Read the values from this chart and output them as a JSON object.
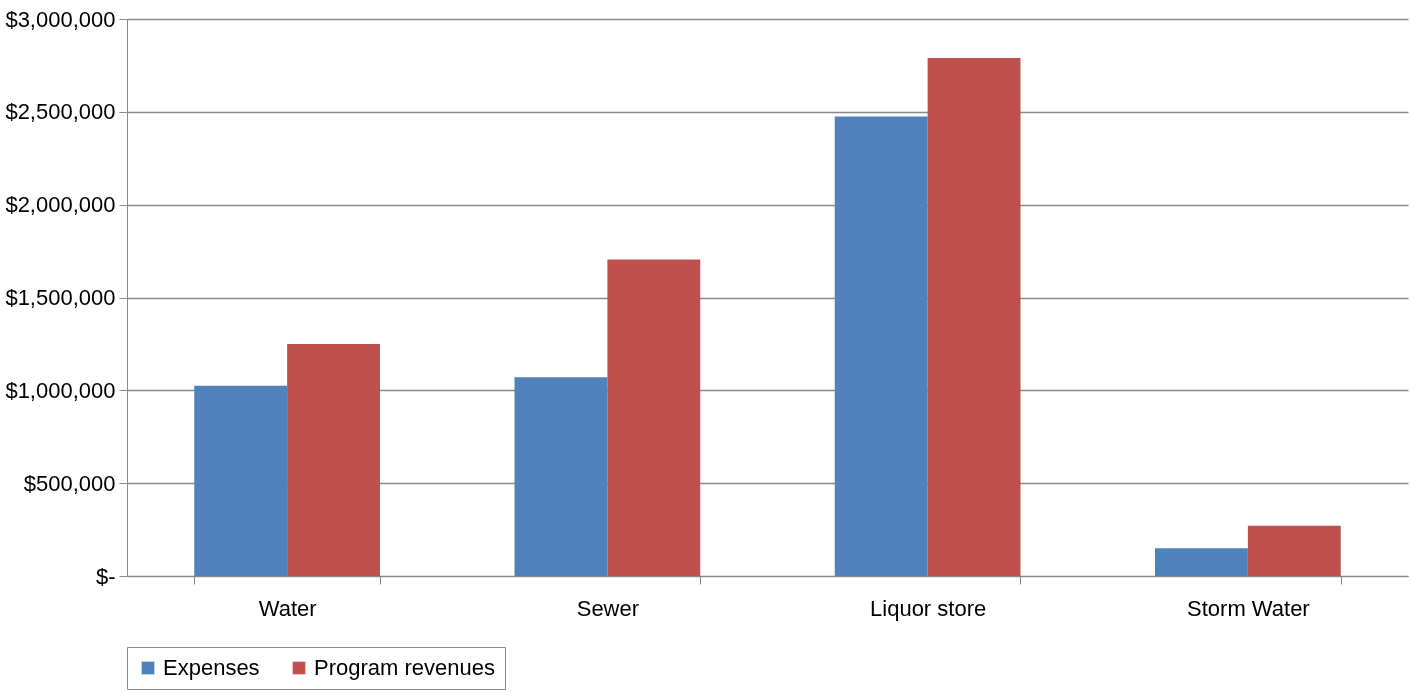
{
  "chart_data": {
    "type": "bar",
    "categories": [
      "Water",
      "Sewer",
      "Liquor store",
      "Storm Water"
    ],
    "series": [
      {
        "name": "Expenses",
        "color": "#4f81bd",
        "values": [
          1025000,
          1070000,
          2475000,
          150000
        ]
      },
      {
        "name": "Program revenues",
        "color": "#c0504d",
        "values": [
          1250000,
          1705000,
          2790000,
          270000
        ]
      }
    ],
    "ylim": [
      0,
      3000000
    ],
    "yticks": [
      {
        "value": 0,
        "label": "$-"
      },
      {
        "value": 500000,
        "label": "$500,000"
      },
      {
        "value": 1000000,
        "label": "$1,000,000"
      },
      {
        "value": 1500000,
        "label": "$1,500,000"
      },
      {
        "value": 2000000,
        "label": "$2,000,000"
      },
      {
        "value": 2500000,
        "label": "$2,500,000"
      },
      {
        "value": 3000000,
        "label": "$3,000,000"
      }
    ],
    "grid": "y",
    "legend": "bottom"
  }
}
